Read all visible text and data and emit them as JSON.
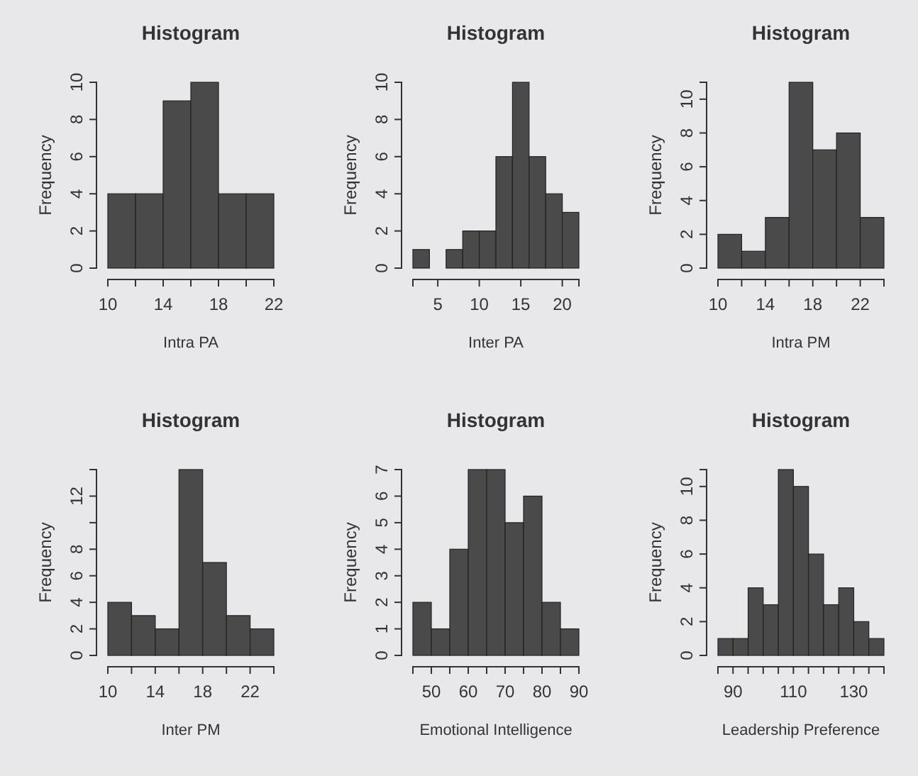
{
  "chart_data": [
    {
      "type": "histogram",
      "title": "Histogram",
      "xlabel": "Intra PA",
      "ylabel": "Frequency",
      "color": "#4a4a4a",
      "bins": [
        10,
        12,
        14,
        16,
        18,
        20,
        22
      ],
      "values": [
        4,
        4,
        9,
        10,
        4,
        4
      ],
      "xlim": [
        10,
        22
      ],
      "ylim": [
        0,
        10
      ],
      "xticks": [
        10,
        {
          "value": 12,
          "label": null
        },
        14,
        {
          "value": 16,
          "label": null
        },
        18,
        {
          "value": 20,
          "label": null
        },
        22
      ],
      "yticks": [
        0,
        2,
        4,
        6,
        8,
        10
      ]
    },
    {
      "type": "histogram",
      "title": "Histogram",
      "xlabel": "Inter PA",
      "ylabel": "Frequency",
      "color": "#4a4a4a",
      "bins": [
        2,
        4,
        6,
        8,
        10,
        12,
        14,
        16,
        18,
        20,
        22
      ],
      "values": [
        1,
        0,
        1,
        2,
        2,
        6,
        10,
        6,
        4,
        3
      ],
      "xlim": [
        2,
        22
      ],
      "ylim": [
        0,
        10
      ],
      "xticks": [
        5,
        10,
        15,
        20
      ],
      "yticks": [
        0,
        2,
        4,
        6,
        8,
        10
      ]
    },
    {
      "type": "histogram",
      "title": "Histogram",
      "xlabel": "Intra PM",
      "ylabel": "Frequency",
      "color": "#4a4a4a",
      "bins": [
        10,
        12,
        14,
        16,
        18,
        20,
        22,
        24
      ],
      "values": [
        2,
        1,
        3,
        11,
        7,
        8,
        3
      ],
      "xlim": [
        10,
        24
      ],
      "ylim": [
        0,
        11
      ],
      "xticks": [
        10,
        {
          "value": 12,
          "label": null
        },
        14,
        {
          "value": 16,
          "label": null
        },
        18,
        {
          "value": 20,
          "label": null
        },
        22,
        {
          "value": 24,
          "label": null
        }
      ],
      "yticks": [
        0,
        2,
        4,
        6,
        8,
        10
      ]
    },
    {
      "type": "histogram",
      "title": "Histogram",
      "xlabel": "Inter PM",
      "ylabel": "Frequency",
      "color": "#4a4a4a",
      "bins": [
        10,
        12,
        14,
        16,
        18,
        20,
        22,
        24
      ],
      "values": [
        4,
        3,
        2,
        14,
        7,
        3,
        2
      ],
      "xlim": [
        10,
        24
      ],
      "ylim": [
        0,
        14
      ],
      "xticks": [
        10,
        {
          "value": 12,
          "label": null
        },
        14,
        {
          "value": 16,
          "label": null
        },
        18,
        {
          "value": 20,
          "label": null
        },
        22,
        {
          "value": 24,
          "label": null
        }
      ],
      "yticks": [
        0,
        2,
        4,
        6,
        8,
        {
          "value": 10,
          "label": null
        },
        12,
        {
          "value": 14,
          "label": null
        }
      ]
    },
    {
      "type": "histogram",
      "title": "Histogram",
      "xlabel": "Emotional Intelligence",
      "ylabel": "Frequency",
      "color": "#4a4a4a",
      "bins": [
        45,
        50,
        55,
        60,
        65,
        70,
        75,
        80,
        85,
        90
      ],
      "values": [
        2,
        1,
        4,
        7,
        7,
        5,
        6,
        2,
        1
      ],
      "xlim": [
        45,
        90
      ],
      "ylim": [
        0,
        7
      ],
      "xticks": [
        50,
        {
          "value": 55,
          "label": null
        },
        60,
        {
          "value": 65,
          "label": null
        },
        70,
        {
          "value": 75,
          "label": null
        },
        80,
        {
          "value": 85,
          "label": null
        },
        90
      ],
      "yticks": [
        0,
        1,
        2,
        3,
        4,
        5,
        6,
        7
      ]
    },
    {
      "type": "histogram",
      "title": "Histogram",
      "xlabel": "Leadership Preference",
      "ylabel": "Frequency",
      "color": "#4a4a4a",
      "bins": [
        85,
        90,
        95,
        100,
        105,
        110,
        115,
        120,
        125,
        130,
        135,
        140
      ],
      "values": [
        1,
        1,
        4,
        3,
        11,
        10,
        6,
        3,
        4,
        2,
        1
      ],
      "xlim": [
        85,
        140
      ],
      "ylim": [
        0,
        11
      ],
      "xticks": [
        90,
        {
          "value": 95,
          "label": null
        },
        {
          "value": 100,
          "label": null
        },
        {
          "value": 105,
          "label": null
        },
        110,
        {
          "value": 115,
          "label": null
        },
        {
          "value": 120,
          "label": null
        },
        {
          "value": 125,
          "label": null
        },
        130,
        {
          "value": 135,
          "label": null
        },
        {
          "value": 140,
          "label": null
        }
      ],
      "yticks": [
        0,
        2,
        4,
        6,
        8,
        10
      ]
    }
  ]
}
